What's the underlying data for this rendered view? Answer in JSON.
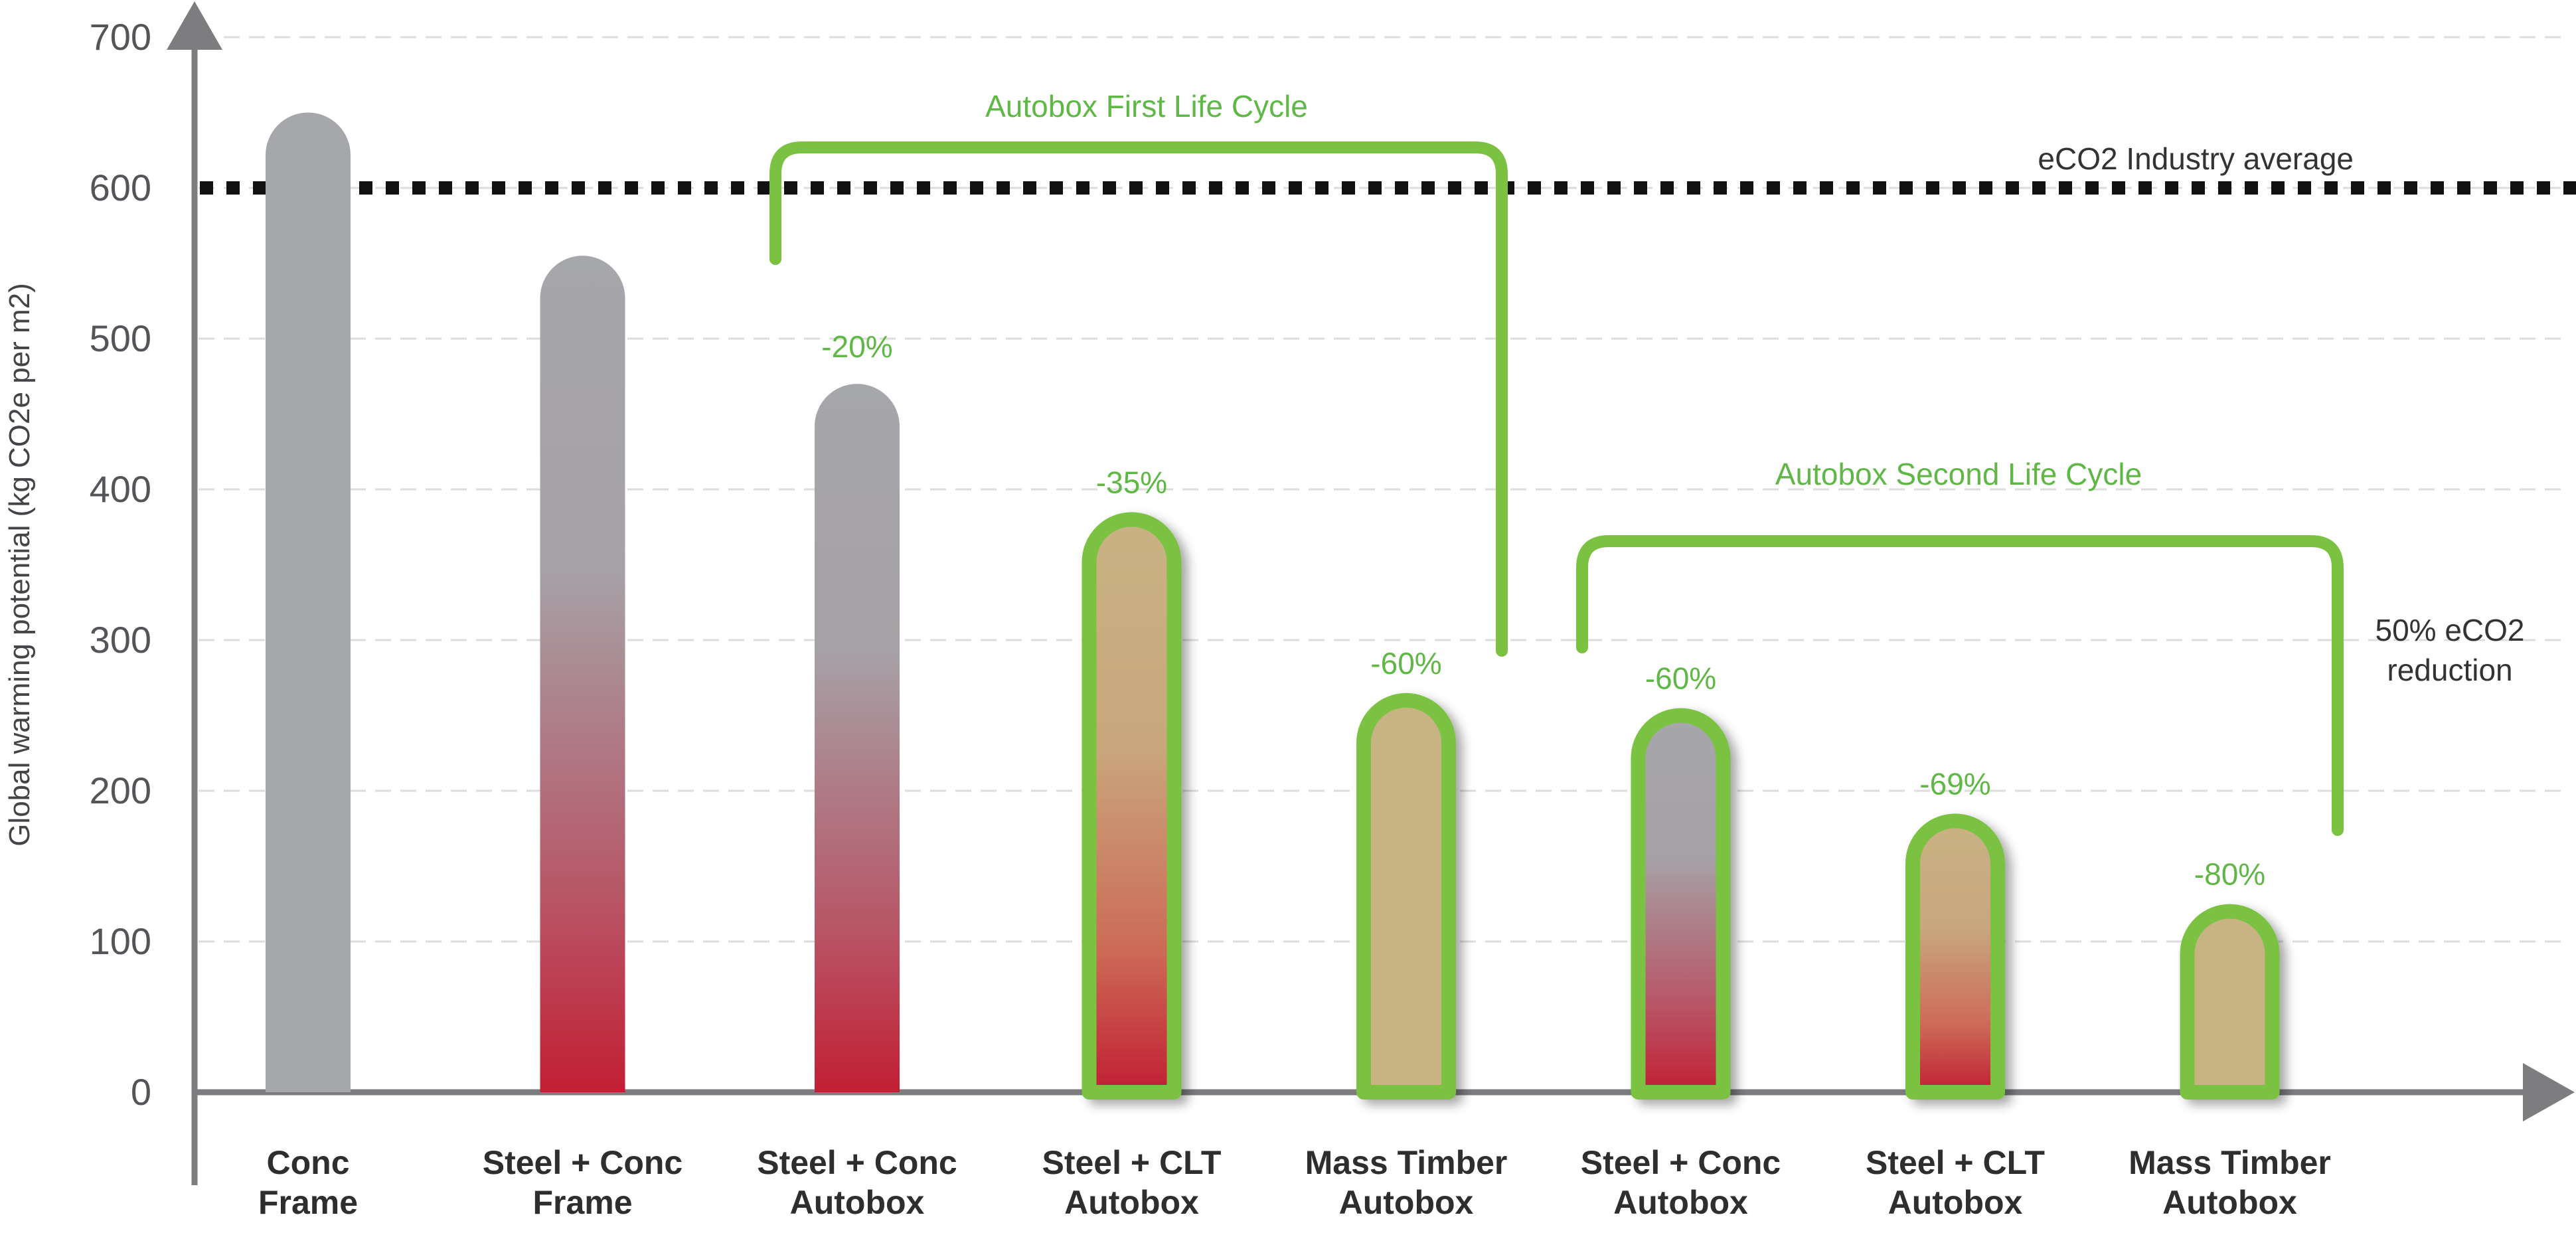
{
  "chart_data": {
    "type": "bar",
    "ylabel": "Global warming potential (kg CO2e per m2)",
    "xlabel": "",
    "ylim": [
      0,
      700
    ],
    "yticks": [
      0,
      100,
      200,
      300,
      400,
      500,
      600,
      700
    ],
    "grid": true,
    "categories": [
      [
        "Conc",
        "Frame"
      ],
      [
        "Steel + Conc",
        "Frame"
      ],
      [
        "Steel + Conc",
        "Autobox"
      ],
      [
        "Steel + CLT",
        "Autobox"
      ],
      [
        "Mass Timber",
        "Autobox"
      ],
      [
        "Steel + Conc",
        "Autobox"
      ],
      [
        "Steel + CLT",
        "Autobox"
      ],
      [
        "Mass Timber",
        "Autobox"
      ]
    ],
    "values": [
      650,
      555,
      470,
      380,
      260,
      250,
      180,
      120
    ],
    "reduction_labels": [
      "",
      "",
      "-20%",
      "-35%",
      "-60%",
      "-60%",
      "-69%",
      "-80%"
    ],
    "bar_styles": [
      "grey",
      "grey-red",
      "grey-red",
      "tan-red",
      "tan",
      "grey-red",
      "tan-red",
      "tan"
    ],
    "autobox_outline": [
      false,
      false,
      false,
      true,
      true,
      true,
      true,
      true
    ],
    "industry_average": {
      "label": "eCO2 Industry average",
      "value": 600
    },
    "annotations": {
      "first_life_cycle": "Autobox First Life Cycle",
      "second_life_cycle": "Autobox Second Life Cycle",
      "reduction_note": [
        "50% eCO2",
        "reduction"
      ]
    },
    "colors": {
      "axis": "#7d7d80",
      "grid": "#dddddd",
      "green": "#7cc242",
      "green_text": "#5fb846",
      "grey_bar": "#a6a7ab",
      "red_bar": "#c21f33",
      "tan_bar": "#c8b383",
      "average_line": "#111111"
    }
  }
}
